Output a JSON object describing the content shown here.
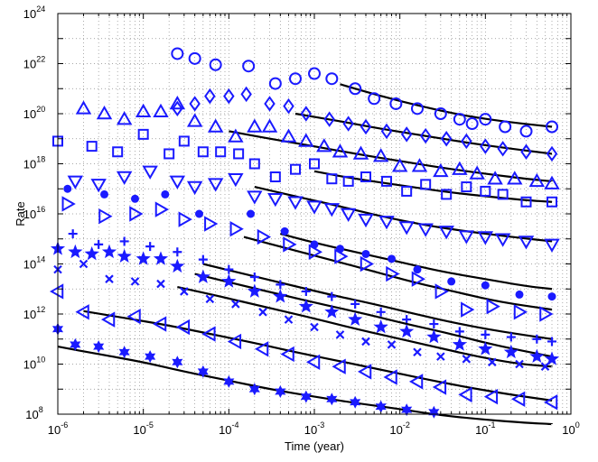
{
  "chart_data": {
    "type": "scatter",
    "xlabel": "Time (year)",
    "ylabel": "Rate",
    "xscale": "log",
    "yscale": "log",
    "xlim": [
      1e-06,
      1
    ],
    "ylim": [
      100000000.0,
      1e+24
    ],
    "grid": true,
    "legend": "none",
    "x_ticks": [
      {
        "base": "10",
        "exp": "-6",
        "value": 1e-06
      },
      {
        "base": "10",
        "exp": "-5",
        "value": 1e-05
      },
      {
        "base": "10",
        "exp": "-4",
        "value": 0.0001
      },
      {
        "base": "10",
        "exp": "-3",
        "value": 0.001
      },
      {
        "base": "10",
        "exp": "-2",
        "value": 0.01
      },
      {
        "base": "10",
        "exp": "-1",
        "value": 0.1
      },
      {
        "base": "10",
        "exp": "0",
        "value": 1
      }
    ],
    "y_ticks": [
      {
        "base": "10",
        "exp": "8",
        "value": 100000000.0
      },
      {
        "base": "10",
        "exp": "10",
        "value": 10000000000.0
      },
      {
        "base": "10",
        "exp": "12",
        "value": 1000000000000.0
      },
      {
        "base": "10",
        "exp": "14",
        "value": 100000000000000.0
      },
      {
        "base": "10",
        "exp": "16",
        "value": 1e+16
      },
      {
        "base": "10",
        "exp": "18",
        "value": 1e+18
      },
      {
        "base": "10",
        "exp": "20",
        "value": 1e+20
      },
      {
        "base": "10",
        "exp": "22",
        "value": 1e+22
      },
      {
        "base": "10",
        "exp": "24",
        "value": 1e+24
      }
    ],
    "colors": {
      "markers": "#1a1aff",
      "fit": "#000000",
      "grid": "#8a8a8a"
    },
    "series": [
      {
        "marker": "circle-open",
        "x": [
          2.5e-05,
          4e-05,
          7e-05,
          0.00017,
          0.00035,
          0.0006,
          0.001,
          0.0016,
          0.003,
          0.005,
          0.009,
          0.016,
          0.03,
          0.05,
          0.07,
          0.1,
          0.17,
          0.3,
          0.6
        ],
        "y": [
          2.5e+22,
          1.6e+22,
          9e+21,
          8e+21,
          1.6e+21,
          2.5e+21,
          4e+21,
          2.5e+21,
          1e+21,
          4e+20,
          2.5e+20,
          1.6e+20,
          1e+20,
          6e+19,
          4e+19,
          6e+19,
          3e+19,
          2e+19,
          3e+19
        ],
        "fit_x": [
          0.002,
          0.006,
          0.02,
          0.06,
          0.2,
          0.6
        ],
        "fit_y": [
          1.5e+21,
          5e+20,
          1.8e+20,
          8e+19,
          4.5e+19,
          3e+19
        ]
      },
      {
        "marker": "diamond-open",
        "x": [
          2.5e-05,
          4e-05,
          6e-05,
          0.0001,
          0.00016,
          0.0003,
          0.0005,
          0.0008,
          0.0015,
          0.0025,
          0.004,
          0.007,
          0.012,
          0.02,
          0.035,
          0.06,
          0.1,
          0.16,
          0.3,
          0.6
        ],
        "y": [
          1.6e+20,
          2.5e+20,
          5e+20,
          5e+20,
          6e+20,
          2.5e+20,
          2e+20,
          1e+20,
          6e+19,
          4e+19,
          3e+19,
          2e+19,
          1.5e+19,
          1.3e+19,
          1e+19,
          8e+18,
          5e+18,
          4e+18,
          3e+18,
          2.5e+18
        ],
        "fit_x": [
          0.0006,
          0.002,
          0.006,
          0.02,
          0.06,
          0.2,
          0.6
        ],
        "fit_y": [
          1e+20,
          5e+19,
          2.5e+19,
          1.3e+19,
          7e+18,
          4e+18,
          2.5e+18
        ]
      },
      {
        "marker": "triangle-up-open",
        "x": [
          2e-06,
          3.5e-06,
          6e-06,
          1e-05,
          1.6e-05,
          2.5e-05,
          4e-05,
          7e-05,
          0.00012,
          0.0002,
          0.0003,
          0.0005,
          0.0008,
          0.0013,
          0.002,
          0.0035,
          0.006,
          0.01,
          0.017,
          0.03,
          0.05,
          0.08,
          0.13,
          0.22,
          0.4,
          0.6
        ],
        "y": [
          1.6e+20,
          1e+20,
          6e+19,
          1.2e+20,
          1.2e+20,
          2.5e+20,
          5e+19,
          3e+19,
          1.2e+19,
          3e+19,
          3e+19,
          1.2e+19,
          8e+18,
          5e+18,
          3e+18,
          2.5e+18,
          2e+18,
          8e+17,
          8e+17,
          5e+17,
          6e+17,
          4e+17,
          2.5e+17,
          2.5e+17,
          2e+17,
          1.6e+17
        ],
        "fit_x": [
          0.0001,
          0.0003,
          0.001,
          0.003,
          0.01,
          0.03,
          0.1,
          0.3,
          0.6
        ],
        "fit_y": [
          2e+19,
          1e+19,
          5e+18,
          2.5e+18,
          1.3e+18,
          7e+17,
          4e+17,
          2.5e+17,
          2e+17
        ]
      },
      {
        "marker": "square-open",
        "x": [
          1e-06,
          2.5e-06,
          5e-06,
          1e-05,
          2e-05,
          3e-05,
          5e-05,
          8e-05,
          0.00013,
          0.0002,
          0.00035,
          0.0006,
          0.001,
          0.0016,
          0.0025,
          0.004,
          0.007,
          0.012,
          0.02,
          0.035,
          0.06,
          0.1,
          0.16,
          0.3,
          0.6
        ],
        "y": [
          8e+18,
          5e+18,
          3e+18,
          1.5e+19,
          2.5e+18,
          8e+18,
          3e+18,
          3e+18,
          2.5e+18,
          1e+18,
          3e+17,
          6e+17,
          1e+18,
          2.5e+17,
          2e+17,
          3e+17,
          2e+17,
          8e+16,
          1.5e+17,
          6e+16,
          1.2e+17,
          8e+16,
          6e+16,
          3e+16,
          3e+16
        ],
        "fit_x": [
          0.001,
          0.003,
          0.01,
          0.03,
          0.1,
          0.3,
          0.6
        ],
        "fit_y": [
          5e+17,
          2.5e+17,
          1.4e+17,
          8e+16,
          5e+16,
          3.5e+16,
          3e+16
        ]
      },
      {
        "marker": "triangle-down-open",
        "x": [
          1.6e-06,
          3e-06,
          6e-06,
          1.2e-05,
          2.5e-05,
          4e-05,
          7e-05,
          0.00012,
          0.0002,
          0.00035,
          0.0006,
          0.001,
          0.0016,
          0.0025,
          0.004,
          0.007,
          0.012,
          0.02,
          0.035,
          0.06,
          0.1,
          0.16,
          0.3,
          0.6
        ],
        "y": [
          2e+17,
          1.5e+17,
          3e+17,
          5e+17,
          2e+17,
          1.2e+17,
          1.6e+17,
          2.5e+17,
          5e+16,
          4e+16,
          3e+16,
          2e+16,
          1.6e+16,
          1e+16,
          6000000000000000.0,
          5000000000000000.0,
          3000000000000000.0,
          2500000000000000.0,
          2000000000000000.0,
          1300000000000000.0,
          1200000000000000.0,
          1000000000000000.0,
          800000000000000.0,
          600000000000000.0
        ],
        "fit_x": [
          0.0002,
          0.0006,
          0.002,
          0.006,
          0.02,
          0.06,
          0.2,
          0.6
        ],
        "fit_y": [
          1.2e+17,
          5e+16,
          2e+16,
          8000000000000000.0,
          3500000000000000.0,
          2000000000000000.0,
          1200000000000000.0,
          800000000000000.0
        ]
      },
      {
        "marker": "circle-filled",
        "x": [
          1.3e-06,
          3.5e-06,
          8e-06,
          1.8e-05,
          4.5e-05,
          0.00018,
          0.00045,
          0.001,
          0.002,
          0.004,
          0.008,
          0.016,
          0.04,
          0.1,
          0.25,
          0.6
        ],
        "y": [
          1e+17,
          6e+16,
          4e+16,
          6e+16,
          1e+16,
          1e+16,
          2000000000000000.0,
          600000000000000.0,
          400000000000000.0,
          250000000000000.0,
          160000000000000.0,
          60000000000000.0,
          20000000000000.0,
          14000000000000.0,
          6000000000000.0,
          5000000000000.0
        ],
        "fit_x": [
          0.0004,
          0.001,
          0.003,
          0.01,
          0.03,
          0.1,
          0.3,
          0.6
        ],
        "fit_y": [
          1600000000000000.0,
          700000000000000.0,
          300000000000000.0,
          120000000000000.0,
          50000000000000.0,
          25000000000000.0,
          13000000000000.0,
          10000000000000.0
        ]
      },
      {
        "marker": "triangle-right-open",
        "x": [
          1.3e-06,
          3.5e-06,
          8e-06,
          1.6e-05,
          3e-05,
          6e-05,
          0.00012,
          0.00025,
          0.0005,
          0.001,
          0.002,
          0.004,
          0.008,
          0.016,
          0.03,
          0.06,
          0.12,
          0.25,
          0.5
        ],
        "y": [
          2.5e+16,
          8000000000000000.0,
          1e+16,
          1.5e+16,
          6000000000000000.0,
          4000000000000000.0,
          2500000000000000.0,
          1200000000000000.0,
          600000000000000.0,
          300000000000000.0,
          200000000000000.0,
          100000000000000.0,
          40000000000000.0,
          25000000000000.0,
          8000000000000.0,
          1500000000000.0,
          2000000000000.0,
          1200000000000.0,
          1000000000000.0
        ],
        "fit_x": [
          0.00015,
          0.0005,
          0.0015,
          0.005,
          0.015,
          0.05,
          0.15,
          0.6
        ],
        "fit_y": [
          1200000000000000.0,
          400000000000000.0,
          150000000000000.0,
          50000000000000.0,
          18000000000000.0,
          7000000000000.0,
          3000000000000.0,
          1500000000000.0
        ]
      },
      {
        "marker": "plus",
        "x": [
          1.5e-06,
          3e-06,
          6e-06,
          1.2e-05,
          2.5e-05,
          5e-05,
          0.0001,
          0.0002,
          0.0004,
          0.0008,
          0.0016,
          0.003,
          0.006,
          0.012,
          0.025,
          0.05,
          0.1,
          0.2,
          0.4,
          0.6
        ],
        "y": [
          1600000000000000.0,
          600000000000000.0,
          800000000000000.0,
          500000000000000.0,
          300000000000000.0,
          150000000000000.0,
          60000000000000.0,
          30000000000000.0,
          15000000000000.0,
          8000000000000.0,
          5000000000000.0,
          2500000000000.0,
          1200000000000.0,
          600000000000.0,
          400000000000.0,
          200000000000.0,
          150000000000.0,
          120000000000.0,
          100000000000.0,
          80000000000.0
        ],
        "fit_x": [
          5e-05,
          0.00015,
          0.0005,
          0.0015,
          0.005,
          0.015,
          0.05,
          0.15,
          0.6
        ],
        "fit_y": [
          100000000000000.0,
          40000000000000.0,
          15000000000000.0,
          6000000000000.0,
          2500000000000.0,
          1000000000000.0,
          400000000000.0,
          200000000000.0,
          100000000000.0
        ]
      },
      {
        "marker": "star-filled",
        "x": [
          1e-06,
          1.6e-06,
          2.5e-06,
          4e-06,
          6e-06,
          1e-05,
          1.6e-05,
          2.5e-05,
          5e-05,
          0.0001,
          0.0002,
          0.0004,
          0.0008,
          0.0016,
          0.003,
          0.006,
          0.012,
          0.025,
          0.05,
          0.1,
          0.2,
          0.4,
          0.6
        ],
        "y": [
          400000000000000.0,
          300000000000000.0,
          250000000000000.0,
          300000000000000.0,
          200000000000000.0,
          160000000000000.0,
          160000000000000.0,
          80000000000000.0,
          30000000000000.0,
          20000000000000.0,
          8000000000000.0,
          5000000000000.0,
          2000000000000.0,
          1200000000000.0,
          600000000000.0,
          300000000000.0,
          200000000000.0,
          120000000000.0,
          60000000000.0,
          40000000000.0,
          30000000000.0,
          20000000000.0,
          16000000000.0
        ],
        "fit_x": [
          4e-05,
          0.00012,
          0.0004,
          0.0012,
          0.004,
          0.012,
          0.04,
          0.12,
          0.6
        ],
        "fit_y": [
          40000000000000.0,
          16000000000000.0,
          6000000000000.0,
          2500000000000.0,
          1000000000000.0,
          400000000000.0,
          160000000000.0,
          60000000000.0,
          20000000000.0
        ]
      },
      {
        "marker": "x",
        "x": [
          1e-06,
          2e-06,
          4e-06,
          8e-06,
          1.6e-05,
          3e-05,
          6e-05,
          0.00012,
          0.00025,
          0.0005,
          0.001,
          0.002,
          0.004,
          0.008,
          0.016,
          0.03,
          0.06,
          0.12,
          0.25,
          0.5
        ],
        "y": [
          60000000000000.0,
          100000000000000.0,
          25000000000000.0,
          20000000000000.0,
          16000000000000.0,
          8000000000000.0,
          4000000000000.0,
          2500000000000.0,
          1200000000000.0,
          600000000000.0,
          300000000000.0,
          150000000000.0,
          80000000000.0,
          60000000000.0,
          30000000000.0,
          20000000000.0,
          16000000000.0,
          12000000000.0,
          10000000000.0,
          8000000000.0
        ],
        "fit_x": [
          2.5e-05,
          8e-05,
          0.00025,
          0.0008,
          0.0025,
          0.008,
          0.025,
          0.08,
          0.25,
          0.6
        ],
        "fit_y": [
          12000000000000.0,
          5000000000000.0,
          2000000000000.0,
          800000000000.0,
          300000000000.0,
          120000000000.0,
          50000000000.0,
          20000000000.0,
          10000000000.0,
          8000000000.0
        ]
      },
      {
        "marker": "triangle-left-open",
        "x": [
          1e-06,
          2e-06,
          4e-06,
          8e-06,
          1.6e-05,
          3e-05,
          6e-05,
          0.00012,
          0.00025,
          0.0005,
          0.001,
          0.002,
          0.004,
          0.008,
          0.016,
          0.03,
          0.06,
          0.12,
          0.25,
          0.6
        ],
        "y": [
          8000000000000.0,
          1200000000000.0,
          600000000000.0,
          800000000000.0,
          400000000000.0,
          300000000000.0,
          160000000000.0,
          80000000000.0,
          40000000000.0,
          25000000000.0,
          12000000000.0,
          8000000000.0,
          5000000000.0,
          3000000000.0,
          2000000000.0,
          1200000000.0,
          600000000.0,
          500000000.0,
          400000000.0,
          300000000.0
        ],
        "fit_x": [
          2e-06,
          6e-06,
          2e-05,
          6e-05,
          0.0002,
          0.0006,
          0.002,
          0.006,
          0.02,
          0.06,
          0.2,
          0.6
        ],
        "fit_y": [
          1300000000000.0,
          700000000000.0,
          350000000000.0,
          160000000000.0,
          70000000000.0,
          30000000000.0,
          13000000000.0,
          6000000000.0,
          2500000000.0,
          1200000000.0,
          600000000.0,
          350000000.0
        ]
      },
      {
        "marker": "hexagram-filled",
        "x": [
          1e-06,
          1.6e-06,
          3e-06,
          6e-06,
          1.2e-05,
          2.5e-05,
          5e-05,
          0.0001,
          0.0002,
          0.0004,
          0.0008,
          0.0016,
          0.003,
          0.006,
          0.012,
          0.025,
          0.05,
          0.1,
          0.2,
          0.4,
          0.6
        ],
        "y": [
          250000000000.0,
          60000000000.0,
          50000000000.0,
          30000000000.0,
          20000000000.0,
          12000000000.0,
          5000000000.0,
          2000000000.0,
          1000000000.0,
          800000000.0,
          500000000.0,
          400000000.0,
          300000000.0,
          200000000.0,
          150000000.0,
          120000000.0,
          80000000.0,
          60000000.0,
          50000000.0,
          40000000.0,
          40000000.0
        ],
        "fit_x": [
          1e-06,
          3e-06,
          1e-05,
          3e-05,
          0.0001,
          0.0003,
          0.001,
          0.003,
          0.01,
          0.03,
          0.1,
          0.3,
          0.6
        ],
        "fit_y": [
          50000000000.0,
          25000000000.0,
          12000000000.0,
          5000000000.0,
          2200000000.0,
          1000000000.0,
          500000000.0,
          280000000.0,
          160000000.0,
          90000000.0,
          60000000.0,
          45000000.0,
          40000000.0
        ]
      }
    ]
  }
}
